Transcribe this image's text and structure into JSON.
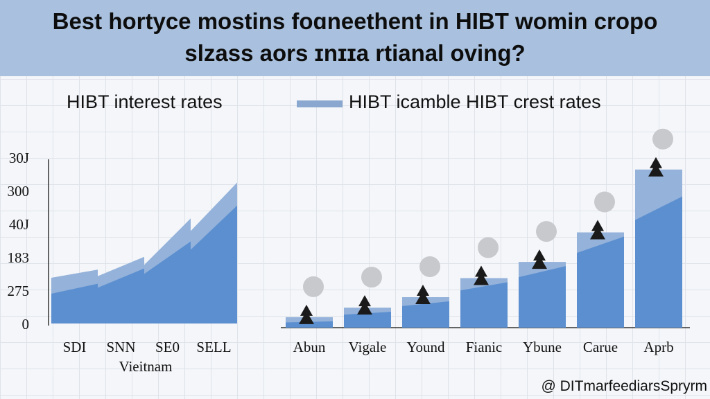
{
  "header": {
    "line1": "Best hortyce mostins foɑneethent in HIBT womin cropo",
    "line2": "slzass aors ɪnɪɪa rtianal oving?"
  },
  "watermark": "@ DITmarfeediarsSpryrm",
  "chart_data": [
    {
      "type": "area",
      "title": "HIBT interest rates",
      "categories": [
        "SDI",
        "SNN",
        "SE0",
        "SELL"
      ],
      "xlabel": "Vieitnam",
      "ytick_labels": [
        "0",
        "275",
        "183",
        "40J",
        "300",
        "30J"
      ],
      "series": [
        {
          "values": [
            1.55,
            2.15,
            3.2,
            4.6
          ]
        },
        {
          "values": [
            2.1,
            2.6,
            4.1,
            5.5
          ]
        }
      ],
      "colors": [
        "#5b8fd0",
        "#94b2da"
      ],
      "grid": true
    },
    {
      "type": "bar",
      "title": "HIBT icamble HIBT crest rates",
      "legend_position": "top",
      "categories": [
        "Abun",
        "Vigale",
        "Yound",
        "Fianic",
        "Ybune",
        "Carue",
        "Aprb"
      ],
      "series": [
        {
          "values": [
            0.5,
            0.95,
            1.35,
            1.75,
            2.25,
            3.0,
            4.1
          ]
        },
        {
          "values": [
            0.55,
            1.05,
            1.6,
            2.6,
            3.45,
            5.0,
            8.3
          ]
        }
      ],
      "colors": [
        "#5b8fd0",
        "#94b2da"
      ],
      "markers": [
        "tree",
        "circle"
      ],
      "grid": true
    }
  ]
}
